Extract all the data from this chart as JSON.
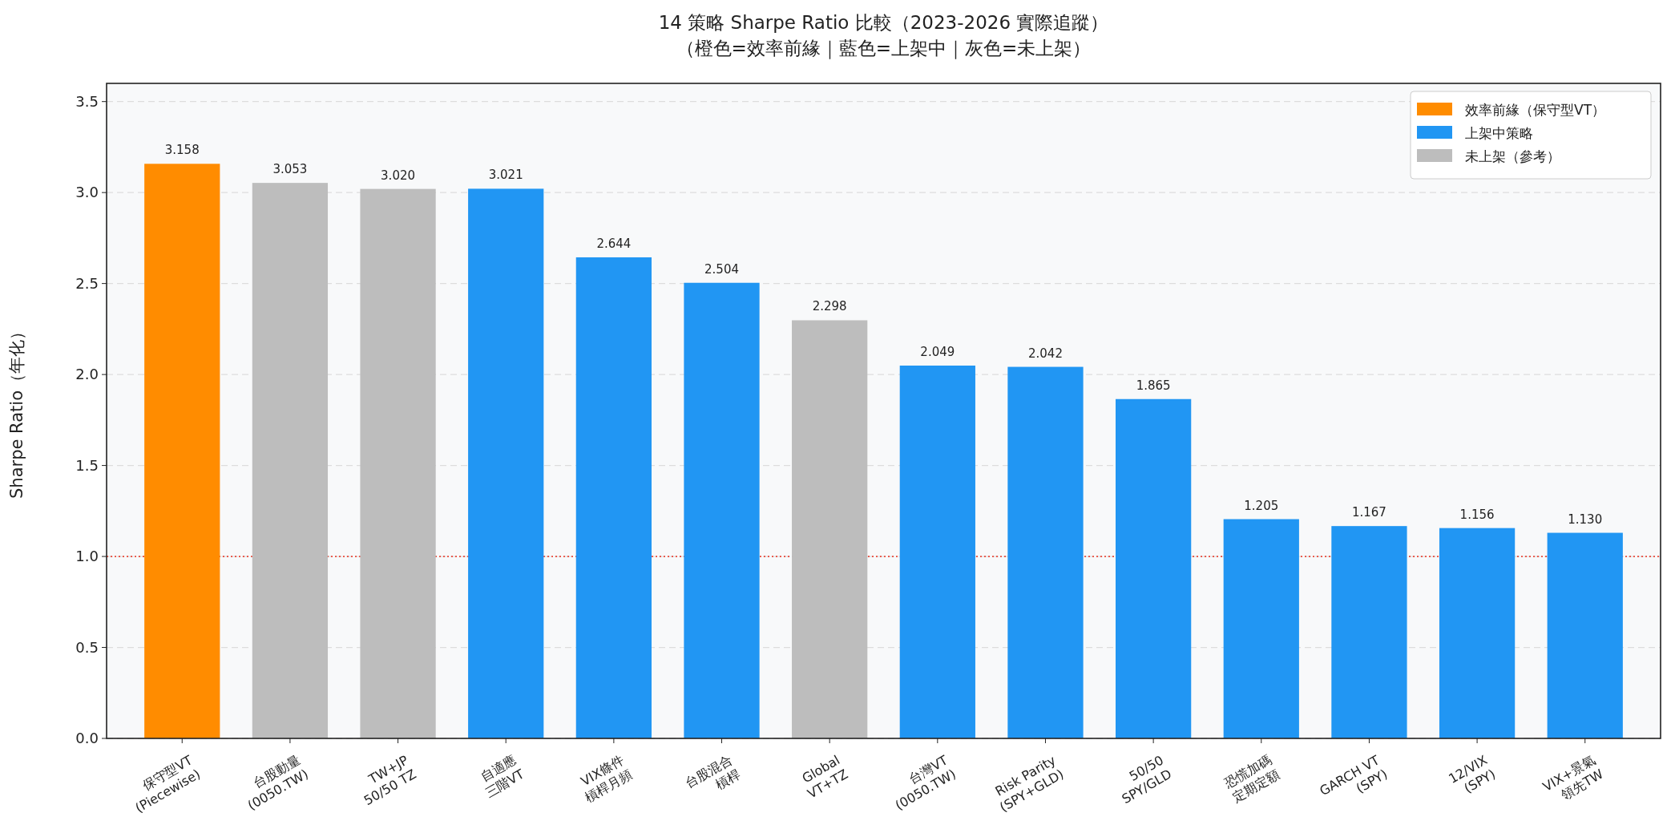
{
  "chart_data": {
    "type": "bar",
    "title": "14 策略 Sharpe Ratio 比較（2023-2026 實際追蹤）",
    "subtitle": "（橙色=效率前緣｜藍色=上架中｜灰色=未上架）",
    "ylabel": "Sharpe Ratio（年化）",
    "categories": [
      "保守型VT\n(Piecewise)",
      "台股動量\n(0050.TW)",
      "TW+JP\n50/50 TZ",
      "自適應\n三階VT",
      "VIX條件\n槓桿月頻",
      "台股混合\n槓桿",
      "Global\nVT+TZ",
      "台灣VT\n(0050.TW)",
      "Risk Parity\n(SPY+GLD)",
      "50/50\nSPY/GLD",
      "恐慌加碼\n定期定額",
      "GARCH VT\n(SPY)",
      "12/VIX\n(SPY)",
      "VIX+景氣\n領先TW"
    ],
    "series": [
      {
        "name": "效率前緣（保守型VT）",
        "color": "#ff8c00",
        "values": [
          3.158,
          null,
          null,
          null,
          null,
          null,
          null,
          null,
          null,
          null,
          null,
          null,
          null,
          null
        ],
        "value_labels": [
          "3.158",
          null,
          null,
          null,
          null,
          null,
          null,
          null,
          null,
          null,
          null,
          null,
          null,
          null
        ]
      },
      {
        "name": "上架中策略",
        "color": "#2196f3",
        "values": [
          null,
          null,
          null,
          3.021,
          2.644,
          2.504,
          null,
          2.049,
          2.042,
          1.865,
          1.205,
          1.167,
          1.156,
          1.13
        ],
        "value_labels": [
          null,
          null,
          null,
          "3.021",
          "2.644",
          "2.504",
          null,
          "2.049",
          "2.042",
          "1.865",
          "1.205",
          "1.167",
          "1.156",
          "1.130"
        ]
      },
      {
        "name": "未上架（參考）",
        "color": "#bdbdbd",
        "values": [
          null,
          3.053,
          3.02,
          null,
          null,
          null,
          2.298,
          null,
          null,
          null,
          null,
          null,
          null,
          null
        ],
        "value_labels": [
          null,
          "3.053",
          "3.020",
          null,
          null,
          null,
          "2.298",
          null,
          null,
          null,
          null,
          null,
          null,
          null
        ]
      }
    ],
    "ylim": [
      0,
      3.6
    ],
    "yticks": [
      {
        "value": 0,
        "label": "0.0"
      },
      {
        "value": 0.5,
        "label": "0.5"
      },
      {
        "value": 1,
        "label": "1.0"
      },
      {
        "value": 1.5,
        "label": "1.5"
      },
      {
        "value": 2,
        "label": "2.0"
      },
      {
        "value": 2.5,
        "label": "2.5"
      },
      {
        "value": 3,
        "label": "3.0"
      },
      {
        "value": 3.5,
        "label": "3.5"
      }
    ],
    "ref_lines": [
      {
        "axis": "y",
        "value": 1,
        "color": "#e74c3c",
        "line_style": "dotted"
      }
    ],
    "grid": "y",
    "legend": "top right"
  }
}
